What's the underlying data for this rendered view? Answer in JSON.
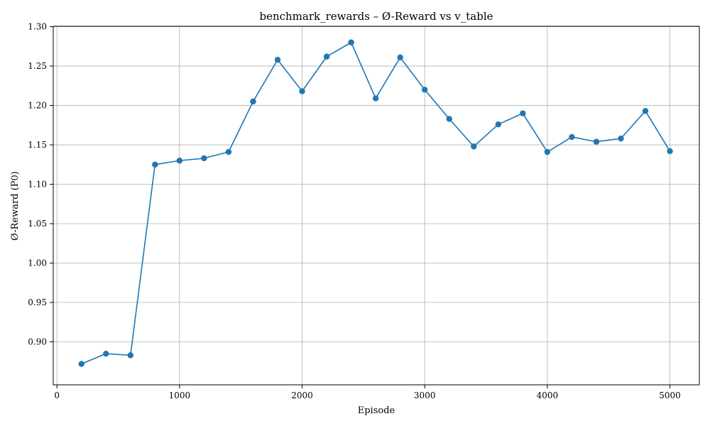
{
  "chart_data": {
    "type": "line",
    "title": "benchmark_rewards – Ø-Reward vs v_table",
    "xlabel": "Episode",
    "ylabel": "Ø-Reward (P0)",
    "xlim": [
      -30,
      5240
    ],
    "ylim": [
      0.8455,
      1.3005
    ],
    "x_ticks": [
      0,
      1000,
      2000,
      3000,
      4000,
      5000
    ],
    "x_tick_labels": [
      "0",
      "1000",
      "2000",
      "3000",
      "4000",
      "5000"
    ],
    "y_ticks": [
      0.9,
      0.95,
      1.0,
      1.05,
      1.1,
      1.15,
      1.2,
      1.25,
      1.3
    ],
    "y_tick_labels": [
      "0.90",
      "0.95",
      "1.00",
      "1.05",
      "1.10",
      "1.15",
      "1.20",
      "1.25",
      "1.30"
    ],
    "grid": true,
    "series": [
      {
        "color": "#1f77b4",
        "marker": "circle",
        "x": [
          200,
          400,
          600,
          800,
          1000,
          1200,
          1400,
          1600,
          1800,
          2000,
          2200,
          2400,
          2600,
          2800,
          3000,
          3200,
          3400,
          3600,
          3800,
          4000,
          4200,
          4400,
          4600,
          4800,
          5000
        ],
        "y": [
          0.872,
          0.885,
          0.883,
          1.125,
          1.13,
          1.133,
          1.141,
          1.205,
          1.258,
          1.218,
          1.262,
          1.28,
          1.209,
          1.261,
          1.22,
          1.183,
          1.148,
          1.176,
          1.19,
          1.141,
          1.16,
          1.154,
          1.158,
          1.193,
          1.142
        ]
      }
    ]
  }
}
